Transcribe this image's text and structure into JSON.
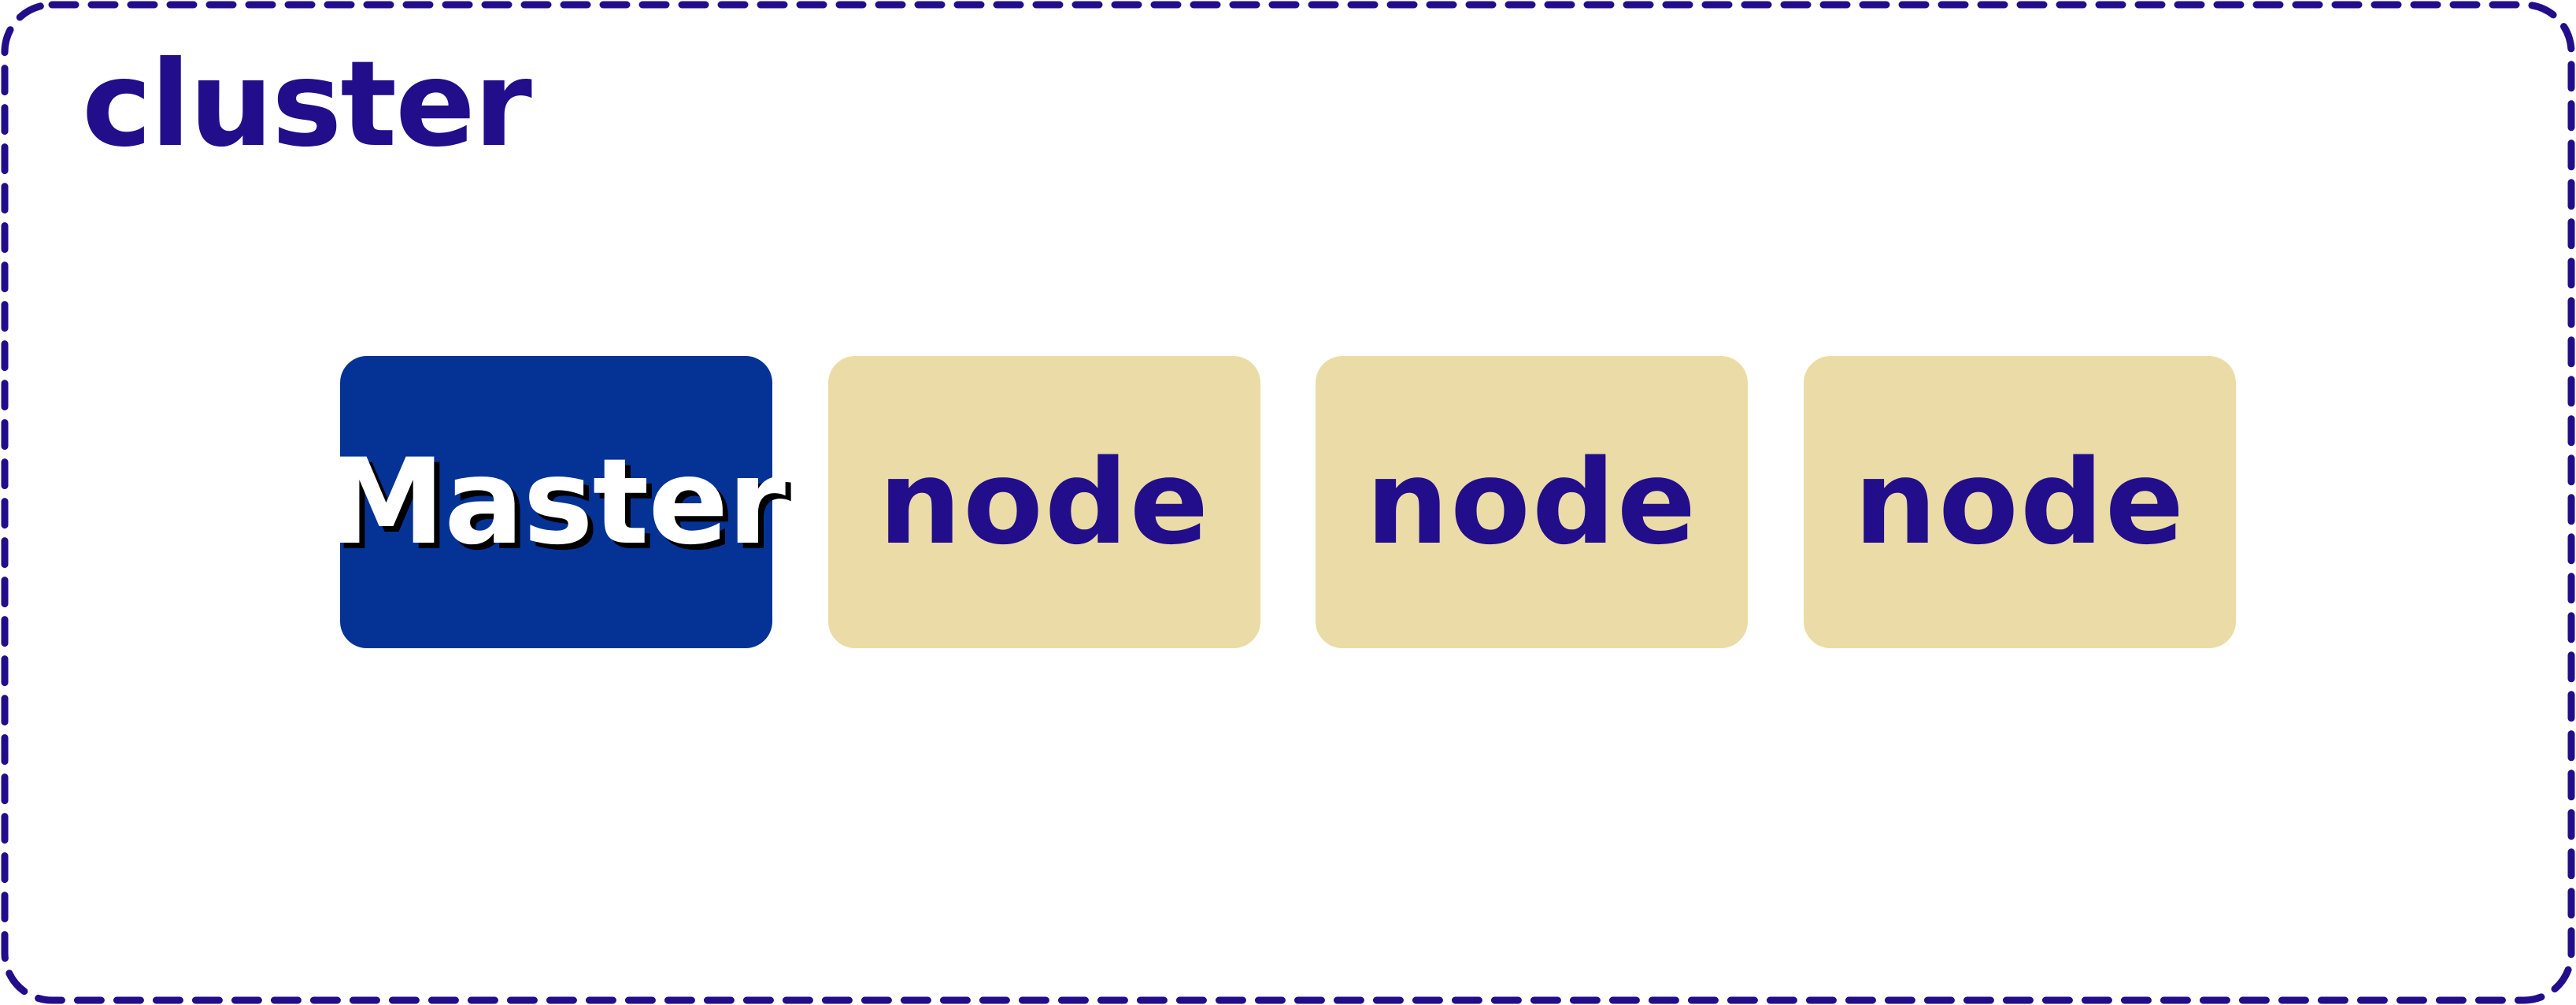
{
  "cluster": {
    "title": "cluster",
    "border_color": "#220d8a"
  },
  "master": {
    "label": "Master",
    "fill_color": "#053295",
    "text_color": "#ffffff",
    "shadow_color": "#000000"
  },
  "nodes": [
    {
      "label": "node"
    },
    {
      "label": "node"
    },
    {
      "label": "node"
    }
  ],
  "node_style": {
    "fill_color": "#ebdca7",
    "text_color": "#220d8a"
  }
}
